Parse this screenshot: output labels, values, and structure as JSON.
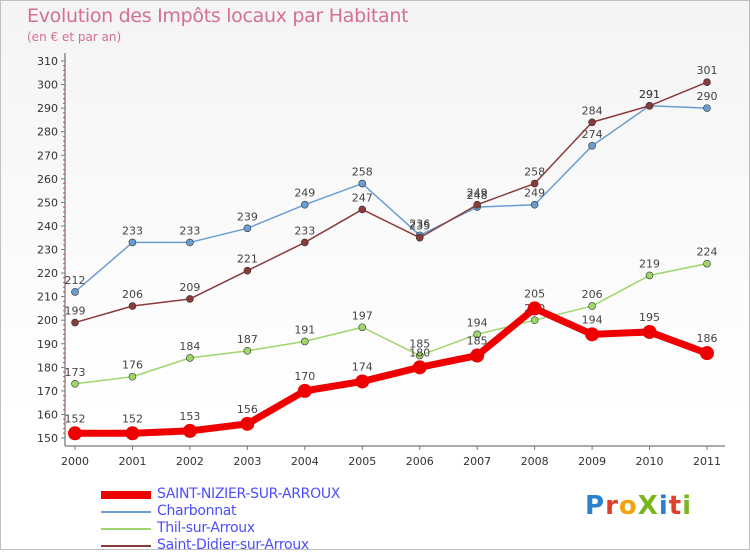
{
  "title": "Evolution des Impôts locaux par Habitant",
  "subtitle": "(en € et par an)",
  "logo": {
    "text": "ProXiti",
    "letter_colors": [
      "#2b7fd0",
      "#e0402a",
      "#f2a20c",
      "#7ab51d",
      "#2b7fd0",
      "#e0402a",
      "#7ab51d"
    ]
  },
  "chart_data": {
    "type": "line",
    "title": "Evolution des Impôts locaux par Habitant",
    "subtitle": "(en € et par an)",
    "xlabel": "",
    "ylabel": "",
    "x": [
      "2000",
      "2001",
      "2002",
      "2003",
      "2004",
      "2005",
      "2006",
      "2007",
      "2008",
      "2009",
      "2010",
      "2011"
    ],
    "ylim": [
      150,
      310
    ],
    "yticks": [
      150,
      160,
      170,
      180,
      190,
      200,
      210,
      220,
      230,
      240,
      250,
      260,
      270,
      280,
      290,
      300,
      310
    ],
    "grid": "none",
    "legend_position": "bottom-left",
    "series": [
      {
        "name": "SAINT-NIZIER-SUR-ARROUX",
        "color": "#ee0000",
        "values": [
          152,
          152,
          153,
          156,
          170,
          174,
          180,
          185,
          205,
          194,
          195,
          186
        ],
        "labels": [
          "152",
          "152",
          "153",
          "156",
          "170",
          "174",
          "180",
          "185",
          "205",
          "194",
          "195",
          "186"
        ]
      },
      {
        "name": "Charbonnat",
        "color": "#6a9ed2",
        "values": [
          212,
          233,
          233,
          239,
          249,
          258,
          236,
          248,
          249,
          274,
          291,
          290
        ],
        "labels": [
          "212",
          "233",
          "233",
          "239",
          "249",
          "258",
          "236",
          "248",
          "249",
          "274",
          "291",
          "290"
        ]
      },
      {
        "name": "Thil-sur-Arroux",
        "color": "#9fd66a",
        "values": [
          173,
          176,
          184,
          187,
          191,
          197,
          185,
          194,
          200,
          206,
          219,
          224
        ],
        "labels": [
          "173",
          "176",
          "184",
          "187",
          "191",
          "197",
          "185",
          "194",
          "200",
          "206",
          "219",
          "224"
        ]
      },
      {
        "name": "Saint-Didier-sur-Arroux",
        "color": "#8a3a3a",
        "values": [
          199,
          206,
          209,
          221,
          233,
          247,
          235,
          249,
          258,
          284,
          291,
          301
        ],
        "labels": [
          "199",
          "206",
          "209",
          "221",
          "233",
          "247",
          "235",
          "249",
          "258",
          "284",
          "291",
          "301"
        ]
      }
    ]
  }
}
